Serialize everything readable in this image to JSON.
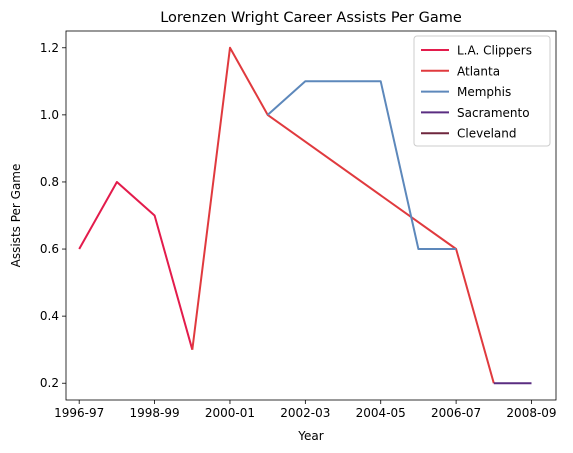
{
  "chart_data": {
    "type": "line",
    "title": "Lorenzen Wright Career Assists Per Game",
    "xlabel": "Year",
    "ylabel": "Assists Per Game",
    "x": [
      "1996-97",
      "1997-98",
      "1998-99",
      "1999-00",
      "2000-01",
      "2001-02",
      "2002-03",
      "2003-04",
      "2004-05",
      "2005-06",
      "2006-07",
      "2007-08",
      "2008-09"
    ],
    "xticks": [
      "1996-97",
      "1998-99",
      "2000-01",
      "2002-03",
      "2004-05",
      "2006-07",
      "2008-09"
    ],
    "yticks": [
      "0.2",
      "0.4",
      "0.6",
      "0.8",
      "1.0",
      "1.2"
    ],
    "xlim": [
      -0.35,
      12.65
    ],
    "ylim": [
      0.15,
      1.25
    ],
    "grid": false,
    "legend_position": "top-right",
    "series": [
      {
        "name": "L.A. Clippers",
        "color": "#e31c4c",
        "x": [
          "1996-97",
          "1997-98",
          "1998-99",
          "1999-00"
        ],
        "values": [
          0.6,
          0.8,
          0.7,
          0.3
        ]
      },
      {
        "name": "Atlanta",
        "color": "#e03a3e",
        "x": [
          "1999-00",
          "2000-01",
          "2001-02",
          "2006-07",
          "2007-08"
        ],
        "values": [
          0.3,
          1.2,
          1.0,
          0.6,
          0.2
        ]
      },
      {
        "name": "Memphis",
        "color": "#5d88bb",
        "x": [
          "2001-02",
          "2002-03",
          "2003-04",
          "2004-05",
          "2005-06",
          "2006-07"
        ],
        "values": [
          1.0,
          1.1,
          1.1,
          1.1,
          0.6,
          0.6
        ]
      },
      {
        "name": "Sacramento",
        "color": "#5a2d81",
        "x": [
          "2007-08",
          "2008-09"
        ],
        "values": [
          0.2,
          0.2
        ]
      },
      {
        "name": "Cleveland",
        "color": "#6f263d",
        "x": [],
        "values": []
      }
    ]
  }
}
